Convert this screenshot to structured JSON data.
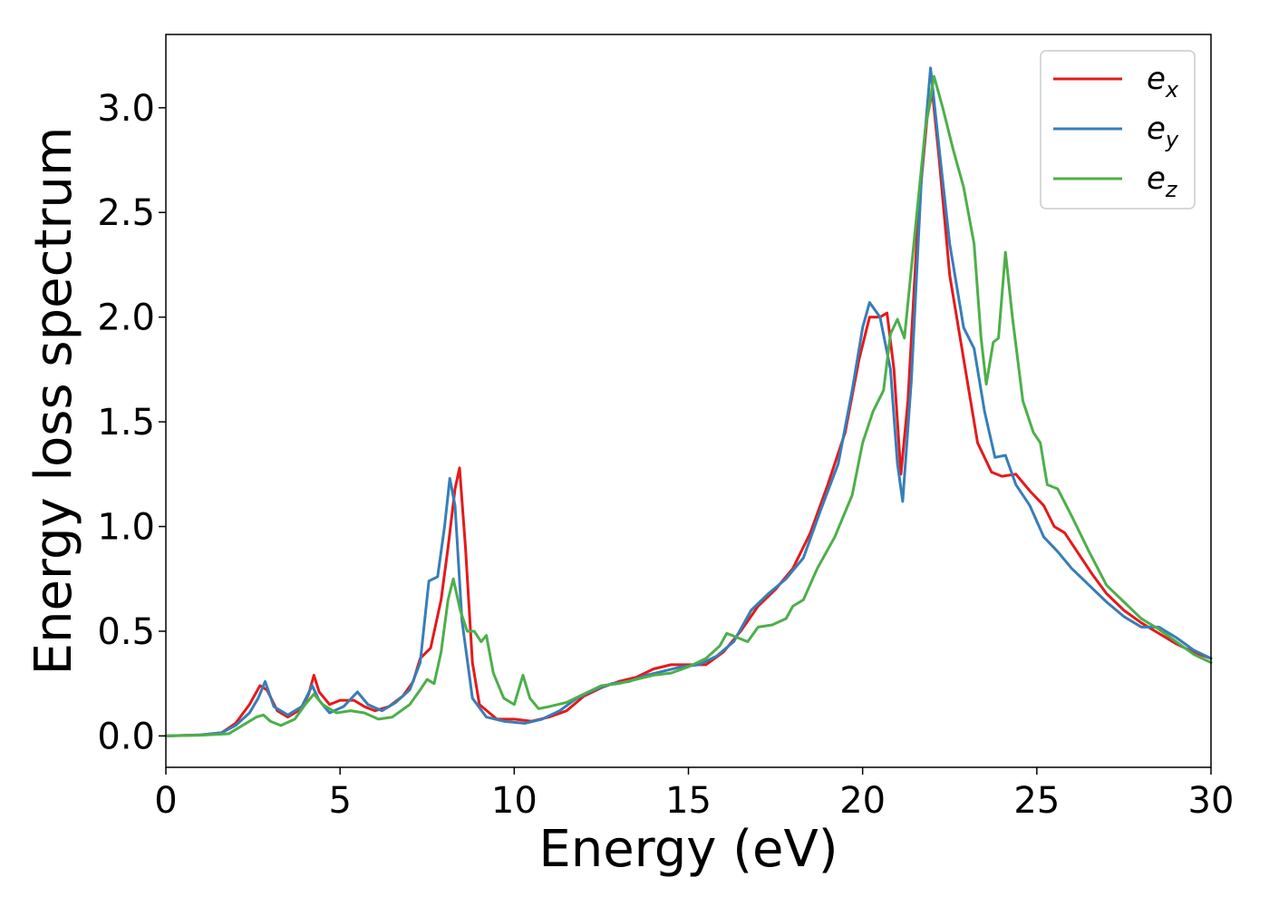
{
  "chart_data": {
    "type": "line",
    "title": "",
    "xlabel": "Energy (eV)",
    "ylabel": "Energy loss spectrum",
    "xlim": [
      0,
      30
    ],
    "ylim": [
      -0.15,
      3.35
    ],
    "xticks": [
      0,
      5,
      10,
      15,
      20,
      25,
      30
    ],
    "xtick_labels": [
      "0",
      "5",
      "10",
      "15",
      "20",
      "25",
      "30"
    ],
    "yticks": [
      0.0,
      0.5,
      1.0,
      1.5,
      2.0,
      2.5,
      3.0
    ],
    "ytick_labels": [
      "0.0",
      "0.5",
      "1.0",
      "1.5",
      "2.0",
      "2.5",
      "3.0"
    ],
    "grid": false,
    "legend": "top-right",
    "series": [
      {
        "name": "e_x",
        "legend_base": "e",
        "legend_sub": "x",
        "color": "#e41a1c",
        "points": [
          [
            0,
            0
          ],
          [
            1,
            0.005
          ],
          [
            1.6,
            0.015
          ],
          [
            2,
            0.06
          ],
          [
            2.4,
            0.15
          ],
          [
            2.7,
            0.24
          ],
          [
            2.9,
            0.22
          ],
          [
            3.2,
            0.12
          ],
          [
            3.5,
            0.09
          ],
          [
            3.9,
            0.13
          ],
          [
            4.1,
            0.2
          ],
          [
            4.25,
            0.29
          ],
          [
            4.4,
            0.21
          ],
          [
            4.7,
            0.15
          ],
          [
            5,
            0.17
          ],
          [
            5.4,
            0.17
          ],
          [
            5.7,
            0.14
          ],
          [
            6,
            0.12
          ],
          [
            6.4,
            0.14
          ],
          [
            6.8,
            0.19
          ],
          [
            7.1,
            0.26
          ],
          [
            7.3,
            0.37
          ],
          [
            7.6,
            0.42
          ],
          [
            7.9,
            0.65
          ],
          [
            8.1,
            0.9
          ],
          [
            8.3,
            1.18
          ],
          [
            8.43,
            1.28
          ],
          [
            8.6,
            0.9
          ],
          [
            8.8,
            0.35
          ],
          [
            9,
            0.15
          ],
          [
            9.5,
            0.08
          ],
          [
            10,
            0.08
          ],
          [
            10.5,
            0.07
          ],
          [
            11,
            0.09
          ],
          [
            11.5,
            0.12
          ],
          [
            12,
            0.19
          ],
          [
            12.5,
            0.23
          ],
          [
            13,
            0.26
          ],
          [
            13.5,
            0.28
          ],
          [
            14,
            0.32
          ],
          [
            14.5,
            0.34
          ],
          [
            15,
            0.34
          ],
          [
            15.5,
            0.34
          ],
          [
            16,
            0.4
          ],
          [
            16.5,
            0.5
          ],
          [
            17,
            0.62
          ],
          [
            17.5,
            0.7
          ],
          [
            18,
            0.8
          ],
          [
            18.5,
            0.97
          ],
          [
            19,
            1.2
          ],
          [
            19.5,
            1.45
          ],
          [
            19.9,
            1.8
          ],
          [
            20.2,
            2.0
          ],
          [
            20.5,
            2.0
          ],
          [
            20.7,
            2.02
          ],
          [
            20.9,
            1.75
          ],
          [
            21.1,
            1.25
          ],
          [
            21.3,
            1.6
          ],
          [
            21.6,
            2.5
          ],
          [
            21.85,
            2.95
          ],
          [
            22.0,
            3.08
          ],
          [
            22.2,
            2.75
          ],
          [
            22.5,
            2.2
          ],
          [
            22.9,
            1.8
          ],
          [
            23.3,
            1.4
          ],
          [
            23.7,
            1.26
          ],
          [
            24.0,
            1.24
          ],
          [
            24.4,
            1.25
          ],
          [
            24.8,
            1.17
          ],
          [
            25.2,
            1.1
          ],
          [
            25.5,
            1.0
          ],
          [
            25.8,
            0.97
          ],
          [
            26.2,
            0.87
          ],
          [
            26.6,
            0.77
          ],
          [
            27,
            0.68
          ],
          [
            27.5,
            0.6
          ],
          [
            28,
            0.54
          ],
          [
            28.5,
            0.49
          ],
          [
            29,
            0.44
          ],
          [
            29.5,
            0.4
          ],
          [
            30,
            0.37
          ]
        ]
      },
      {
        "name": "e_y",
        "legend_base": "e",
        "legend_sub": "y",
        "color": "#377eb8",
        "points": [
          [
            0,
            0
          ],
          [
            1,
            0.005
          ],
          [
            1.6,
            0.015
          ],
          [
            2,
            0.05
          ],
          [
            2.4,
            0.11
          ],
          [
            2.65,
            0.18
          ],
          [
            2.85,
            0.26
          ],
          [
            3.1,
            0.14
          ],
          [
            3.5,
            0.1
          ],
          [
            3.9,
            0.14
          ],
          [
            4.2,
            0.24
          ],
          [
            4.4,
            0.17
          ],
          [
            4.7,
            0.11
          ],
          [
            5.1,
            0.14
          ],
          [
            5.5,
            0.21
          ],
          [
            5.8,
            0.15
          ],
          [
            6.2,
            0.12
          ],
          [
            6.6,
            0.16
          ],
          [
            7,
            0.22
          ],
          [
            7.3,
            0.35
          ],
          [
            7.55,
            0.74
          ],
          [
            7.8,
            0.76
          ],
          [
            8.0,
            1.0
          ],
          [
            8.15,
            1.23
          ],
          [
            8.3,
            1.1
          ],
          [
            8.5,
            0.55
          ],
          [
            8.8,
            0.18
          ],
          [
            9.2,
            0.09
          ],
          [
            9.7,
            0.07
          ],
          [
            10.3,
            0.06
          ],
          [
            10.8,
            0.08
          ],
          [
            11.3,
            0.12
          ],
          [
            11.8,
            0.18
          ],
          [
            12.3,
            0.22
          ],
          [
            12.8,
            0.25
          ],
          [
            13.3,
            0.26
          ],
          [
            13.8,
            0.29
          ],
          [
            14.3,
            0.31
          ],
          [
            14.8,
            0.33
          ],
          [
            15.3,
            0.34
          ],
          [
            15.8,
            0.38
          ],
          [
            16.3,
            0.45
          ],
          [
            16.8,
            0.6
          ],
          [
            17.3,
            0.68
          ],
          [
            17.8,
            0.75
          ],
          [
            18.3,
            0.85
          ],
          [
            18.8,
            1.08
          ],
          [
            19.3,
            1.3
          ],
          [
            19.7,
            1.65
          ],
          [
            20.0,
            1.95
          ],
          [
            20.2,
            2.07
          ],
          [
            20.5,
            2.0
          ],
          [
            20.8,
            1.75
          ],
          [
            21.0,
            1.3
          ],
          [
            21.15,
            1.12
          ],
          [
            21.4,
            1.7
          ],
          [
            21.7,
            2.7
          ],
          [
            21.95,
            3.19
          ],
          [
            22.2,
            2.8
          ],
          [
            22.5,
            2.35
          ],
          [
            22.9,
            1.95
          ],
          [
            23.2,
            1.85
          ],
          [
            23.5,
            1.55
          ],
          [
            23.8,
            1.33
          ],
          [
            24.1,
            1.34
          ],
          [
            24.4,
            1.2
          ],
          [
            24.8,
            1.1
          ],
          [
            25.2,
            0.95
          ],
          [
            25.6,
            0.88
          ],
          [
            26,
            0.8
          ],
          [
            26.5,
            0.72
          ],
          [
            27,
            0.64
          ],
          [
            27.5,
            0.57
          ],
          [
            28,
            0.52
          ],
          [
            28.5,
            0.52
          ],
          [
            29,
            0.47
          ],
          [
            29.5,
            0.41
          ],
          [
            30,
            0.37
          ]
        ]
      },
      {
        "name": "e_z",
        "legend_base": "e",
        "legend_sub": "z",
        "color": "#4daf4a",
        "points": [
          [
            0,
            0
          ],
          [
            1,
            0.003
          ],
          [
            1.8,
            0.01
          ],
          [
            2.2,
            0.05
          ],
          [
            2.6,
            0.09
          ],
          [
            2.8,
            0.1
          ],
          [
            3.0,
            0.07
          ],
          [
            3.3,
            0.05
          ],
          [
            3.7,
            0.08
          ],
          [
            4.0,
            0.15
          ],
          [
            4.25,
            0.2
          ],
          [
            4.5,
            0.15
          ],
          [
            4.9,
            0.11
          ],
          [
            5.3,
            0.12
          ],
          [
            5.7,
            0.11
          ],
          [
            6.1,
            0.08
          ],
          [
            6.5,
            0.09
          ],
          [
            7.0,
            0.15
          ],
          [
            7.3,
            0.22
          ],
          [
            7.5,
            0.27
          ],
          [
            7.7,
            0.25
          ],
          [
            7.9,
            0.4
          ],
          [
            8.1,
            0.65
          ],
          [
            8.25,
            0.75
          ],
          [
            8.45,
            0.6
          ],
          [
            8.65,
            0.5
          ],
          [
            8.85,
            0.5
          ],
          [
            9.05,
            0.45
          ],
          [
            9.2,
            0.48
          ],
          [
            9.4,
            0.3
          ],
          [
            9.7,
            0.18
          ],
          [
            10.0,
            0.15
          ],
          [
            10.25,
            0.29
          ],
          [
            10.45,
            0.18
          ],
          [
            10.7,
            0.13
          ],
          [
            11.0,
            0.14
          ],
          [
            11.5,
            0.16
          ],
          [
            12,
            0.2
          ],
          [
            12.5,
            0.24
          ],
          [
            13,
            0.25
          ],
          [
            13.5,
            0.27
          ],
          [
            14,
            0.29
          ],
          [
            14.5,
            0.3
          ],
          [
            15,
            0.33
          ],
          [
            15.5,
            0.37
          ],
          [
            15.9,
            0.43
          ],
          [
            16.1,
            0.49
          ],
          [
            16.4,
            0.47
          ],
          [
            16.7,
            0.45
          ],
          [
            17.0,
            0.52
          ],
          [
            17.4,
            0.53
          ],
          [
            17.8,
            0.56
          ],
          [
            18.0,
            0.62
          ],
          [
            18.3,
            0.65
          ],
          [
            18.7,
            0.8
          ],
          [
            19.2,
            0.95
          ],
          [
            19.7,
            1.15
          ],
          [
            20.0,
            1.4
          ],
          [
            20.3,
            1.55
          ],
          [
            20.6,
            1.65
          ],
          [
            20.8,
            1.92
          ],
          [
            21.0,
            1.99
          ],
          [
            21.2,
            1.9
          ],
          [
            21.5,
            2.4
          ],
          [
            21.8,
            2.9
          ],
          [
            22.05,
            3.15
          ],
          [
            22.3,
            3.0
          ],
          [
            22.6,
            2.8
          ],
          [
            22.9,
            2.62
          ],
          [
            23.2,
            2.35
          ],
          [
            23.4,
            1.9
          ],
          [
            23.55,
            1.68
          ],
          [
            23.75,
            1.88
          ],
          [
            23.9,
            1.9
          ],
          [
            24.1,
            2.31
          ],
          [
            24.3,
            2.0
          ],
          [
            24.6,
            1.6
          ],
          [
            24.9,
            1.45
          ],
          [
            25.1,
            1.4
          ],
          [
            25.3,
            1.2
          ],
          [
            25.6,
            1.18
          ],
          [
            26.0,
            1.05
          ],
          [
            26.5,
            0.88
          ],
          [
            27.0,
            0.72
          ],
          [
            27.5,
            0.64
          ],
          [
            28,
            0.56
          ],
          [
            28.5,
            0.51
          ],
          [
            29,
            0.45
          ],
          [
            29.5,
            0.39
          ],
          [
            30,
            0.35
          ]
        ]
      }
    ]
  }
}
